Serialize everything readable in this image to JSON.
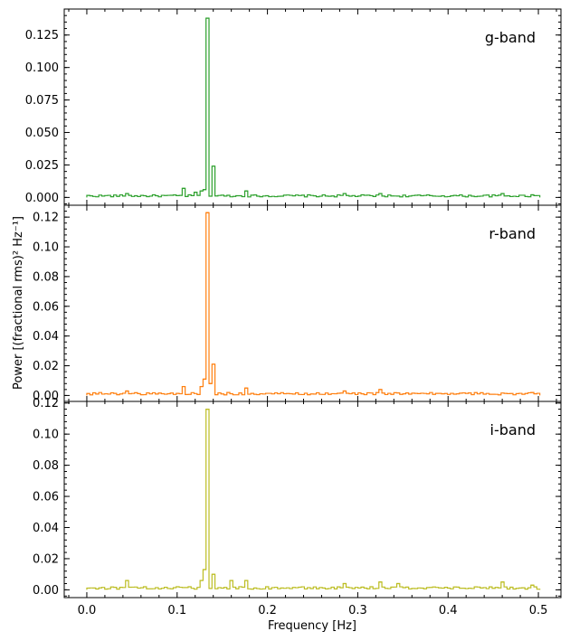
{
  "chart_data": {
    "type": "line",
    "xlabel": "Frequency [Hz]",
    "ylabel": "Power [(fractional rms)² Hz⁻¹]",
    "xlim": [
      -0.025,
      0.525
    ],
    "x_ticks": [
      "0.0",
      "0.1",
      "0.2",
      "0.3",
      "0.4",
      "0.5"
    ],
    "x_tick_values": [
      0.0,
      0.1,
      0.2,
      0.3,
      0.4,
      0.5
    ],
    "grid": false,
    "step_plot": true,
    "bin_width": 0.0033,
    "panels": [
      {
        "band_label": "g-band",
        "color": "#2ca02c",
        "ylim": [
          -0.006,
          0.145
        ],
        "y_ticks": [
          "0.000",
          "0.025",
          "0.050",
          "0.075",
          "0.100",
          "0.125"
        ],
        "y_tick_values": [
          0.0,
          0.025,
          0.05,
          0.075,
          0.1,
          0.125
        ],
        "peaks": [
          {
            "x": 0.1345,
            "y": 0.138
          },
          {
            "x": 0.141,
            "y": 0.024
          },
          {
            "x": 0.106,
            "y": 0.007
          },
          {
            "x": 0.131,
            "y": 0.006
          },
          {
            "x": 0.126,
            "y": 0.005
          },
          {
            "x": 0.1215,
            "y": 0.004
          },
          {
            "x": 0.178,
            "y": 0.005
          },
          {
            "x": 0.287,
            "y": 0.003
          },
          {
            "x": 0.325,
            "y": 0.003
          },
          {
            "x": 0.045,
            "y": 0.003
          },
          {
            "x": 0.46,
            "y": 0.003
          },
          {
            "x": 0.493,
            "y": 0.002
          }
        ]
      },
      {
        "band_label": "r-band",
        "color": "#ff7f0e",
        "ylim": [
          -0.004,
          0.128
        ],
        "y_ticks": [
          "0.00",
          "0.02",
          "0.04",
          "0.06",
          "0.08",
          "0.10",
          "0.12"
        ],
        "y_tick_values": [
          0.0,
          0.02,
          0.04,
          0.06,
          0.08,
          0.1,
          0.12
        ],
        "peaks": [
          {
            "x": 0.1345,
            "y": 0.123
          },
          {
            "x": 0.141,
            "y": 0.021
          },
          {
            "x": 0.131,
            "y": 0.011
          },
          {
            "x": 0.106,
            "y": 0.006
          },
          {
            "x": 0.126,
            "y": 0.006
          },
          {
            "x": 0.138,
            "y": 0.008
          },
          {
            "x": 0.178,
            "y": 0.005
          },
          {
            "x": 0.287,
            "y": 0.003
          },
          {
            "x": 0.325,
            "y": 0.004
          },
          {
            "x": 0.045,
            "y": 0.003
          },
          {
            "x": 0.493,
            "y": 0.002
          }
        ]
      },
      {
        "band_label": "i-band",
        "color": "#bcbd22",
        "ylim": [
          -0.005,
          0.121
        ],
        "y_ticks": [
          "0.00",
          "0.02",
          "0.04",
          "0.06",
          "0.08",
          "0.10",
          "0.12"
        ],
        "y_tick_values": [
          0.0,
          0.02,
          0.04,
          0.06,
          0.08,
          0.1,
          0.12
        ],
        "peaks": [
          {
            "x": 0.1345,
            "y": 0.116
          },
          {
            "x": 0.131,
            "y": 0.013
          },
          {
            "x": 0.141,
            "y": 0.01
          },
          {
            "x": 0.126,
            "y": 0.006
          },
          {
            "x": 0.16,
            "y": 0.006
          },
          {
            "x": 0.178,
            "y": 0.006
          },
          {
            "x": 0.044,
            "y": 0.006
          },
          {
            "x": 0.287,
            "y": 0.004
          },
          {
            "x": 0.325,
            "y": 0.005
          },
          {
            "x": 0.345,
            "y": 0.004
          },
          {
            "x": 0.46,
            "y": 0.005
          },
          {
            "x": 0.493,
            "y": 0.003
          }
        ]
      }
    ]
  }
}
